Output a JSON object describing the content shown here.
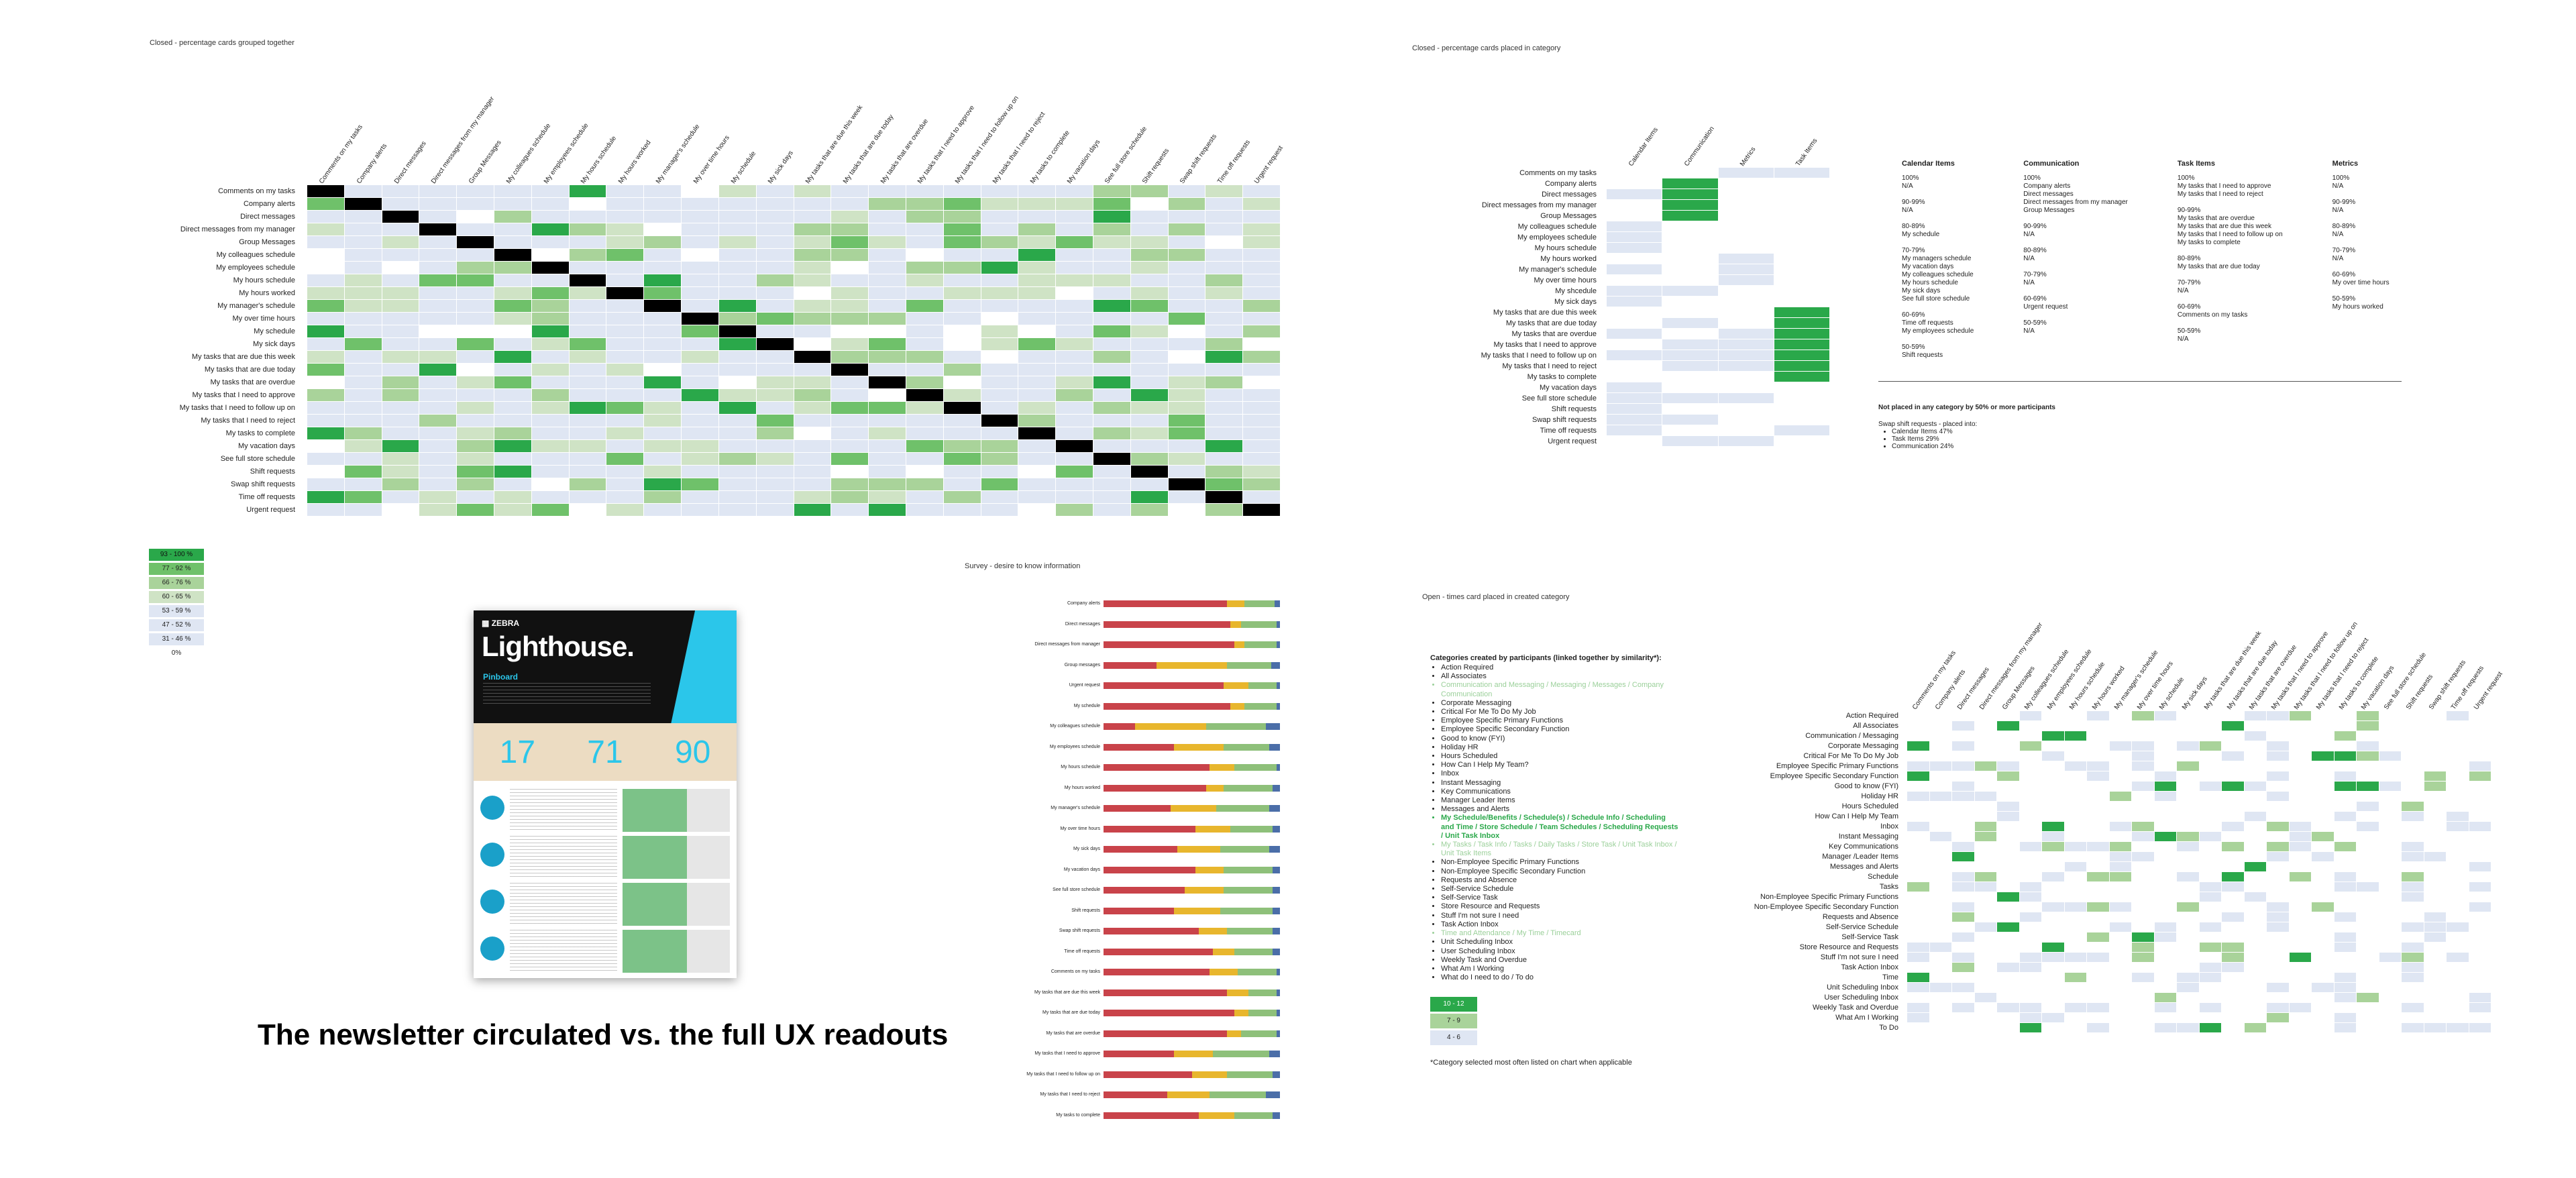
{
  "colors": {
    "heat_levels": [
      "#ffffff",
      "#dfe6f3",
      "#cfe3c5",
      "#a9d39a",
      "#6fc16a",
      "#2aa84a",
      "#000000"
    ],
    "survey_bars": [
      "#c9434a",
      "#e8b62d",
      "#8ec07a",
      "#4b6ea8"
    ],
    "newsletter_cyan": "#2bc6ea",
    "newsletter_dark": "#111111"
  },
  "closed_grouped": {
    "title": "Closed - percentage cards grouped together",
    "columns": [
      "Comments on my tasks",
      "Company alerts",
      "Direct messages",
      "Direct messages from my manager",
      "Group Messages",
      "My colleagues schedule",
      "My employees schedule",
      "My hours schedule",
      "My hours worked",
      "My manager's schedule",
      "My over time hours",
      "My schedule",
      "My sick days",
      "My tasks that are due this week",
      "My tasks that are due today",
      "My tasks that are overdue",
      "My tasks that I need to approve",
      "My tasks that I need to follow up on",
      "My tasks that I need to reject",
      "My tasks to complete",
      "My vacation days",
      "See full store schedule",
      "Shift requests",
      "Swap shift requests",
      "Time off requests",
      "Urgent request"
    ],
    "rows": [
      "Comments on my tasks",
      "Company alerts",
      "Direct messages",
      "Direct messages from my manager",
      "Group Messages",
      "My colleagues schedule",
      "My employees schedule",
      "My hours schedule",
      "My hours worked",
      "My manager's schedule",
      "My over time hours",
      "My schedule",
      "My sick days",
      "My tasks that are due this week",
      "My tasks that are due today",
      "My tasks that are overdue",
      "My tasks that I need to approve",
      "My tasks that I need to follow up on",
      "My tasks that I need to reject",
      "My tasks to complete",
      "My vacation days",
      "See full store schedule",
      "Shift requests",
      "Swap shift requests",
      "Time off requests",
      "Urgent request"
    ]
  },
  "legend": {
    "items": [
      "93 - 100 %",
      "77 - 92 %",
      "66 - 76 %",
      "60 - 65 %",
      "53 - 59 %",
      "47 - 52 %",
      "31 - 46 %",
      "0%"
    ]
  },
  "closed_in_category": {
    "title": "Closed - percentage cards placed in category",
    "columns": [
      "Calendar Items",
      "Communication",
      "Metrics",
      "Task Items"
    ],
    "rows": [
      "Comments on my tasks",
      "Company alerts",
      "Direct messages",
      "Direct messages from my manager",
      "Group Messages",
      "My colleagues schedule",
      "My employees schedule",
      "My hours schedule",
      "My hours worked",
      "My manager's schedule",
      "My over time hours",
      "My shcedule",
      "My sick days",
      "My tasks that are due this week",
      "My tasks that are due today",
      "My tasks that are overdue",
      "My tasks that I need to approve",
      "My tasks that I need to follow up on",
      "My tasks that I need to reject",
      "My tasks to complete",
      "My vacation days",
      "See full store schedule",
      "Shift requests",
      "Swap shift requests",
      "Time off requests",
      "Urgent request"
    ],
    "summary": [
      {
        "heading": "Calendar Items",
        "body": "100%\nN/A\n\n90-99%\nN/A\n\n80-89%\nMy schedule\n\n70-79%\nMy managers schedule\nMy vacation days\nMy colleagues schedule\nMy hours schedule\nMy sick days\nSee full store schedule\n\n60-69%\nTime off requests\nMy employees schedule\n\n50-59%\nShift requests"
      },
      {
        "heading": "Communication",
        "body": "100%\nCompany alerts\nDirect messages\nDirect messages from my manager\nGroup Messages\n\n90-99%\nN/A\n\n80-89%\nN/A\n\n70-79%\nN/A\n\n60-69%\nUrgent request\n\n50-59%\nN/A"
      },
      {
        "heading": "Task Items",
        "body": "100%\nMy tasks that I need to approve\nMy tasks that I need to reject\n\n90-99%\nMy tasks that are overdue\nMy tasks that are due this week\nMy tasks that I need to follow up on\nMy tasks to complete\n\n80-89%\nMy tasks that are due today\n\n70-79%\nN/A\n\n60-69%\nComments on my tasks\n\n50-59%\nN/A"
      },
      {
        "heading": "Metrics",
        "body": "100%\nN/A\n\n90-99%\nN/A\n\n80-89%\nN/A\n\n70-79%\nN/A\n\n60-69%\nMy over time hours\n\n50-59%\nMy hours worked"
      }
    ],
    "not_placed_title": "Not placed in any category by 50% or more participants",
    "not_placed_intro": "Swap shift requests - placed into:",
    "not_placed_items": [
      "Calendar Items 47%",
      "Task Items 29%",
      "Communication 24%"
    ]
  },
  "survey": {
    "title": "Survey - desire to know information",
    "rows": [
      {
        "label": "Company alerts",
        "values": [
          70,
          10,
          17,
          3
        ]
      },
      {
        "label": "Direct messages",
        "values": [
          72,
          6,
          20,
          2
        ]
      },
      {
        "label": "Direct messages from manager",
        "values": [
          74,
          6,
          18,
          2
        ]
      },
      {
        "label": "Group messages",
        "values": [
          30,
          40,
          25,
          5
        ]
      },
      {
        "label": "Urgent request",
        "values": [
          68,
          14,
          16,
          2
        ]
      },
      {
        "label": "My schedule",
        "values": [
          72,
          8,
          18,
          2
        ]
      },
      {
        "label": "My colleagues schedule",
        "values": [
          18,
          40,
          34,
          8
        ]
      },
      {
        "label": "My employees schedule",
        "values": [
          40,
          28,
          26,
          6
        ]
      },
      {
        "label": "My hours schedule",
        "values": [
          60,
          14,
          24,
          2
        ]
      },
      {
        "label": "My hours worked",
        "values": [
          58,
          10,
          28,
          4
        ]
      },
      {
        "label": "My manager's schedule",
        "values": [
          38,
          26,
          30,
          6
        ]
      },
      {
        "label": "My over time hours",
        "values": [
          52,
          20,
          24,
          4
        ]
      },
      {
        "label": "My sick days",
        "values": [
          42,
          24,
          28,
          6
        ]
      },
      {
        "label": "My vacation days",
        "values": [
          52,
          16,
          28,
          4
        ]
      },
      {
        "label": "See full store schedule",
        "values": [
          46,
          22,
          28,
          4
        ]
      },
      {
        "label": "Shift requests",
        "values": [
          40,
          26,
          30,
          4
        ]
      },
      {
        "label": "Swap shift requests",
        "values": [
          54,
          16,
          26,
          4
        ]
      },
      {
        "label": "Time off requests",
        "values": [
          62,
          12,
          22,
          4
        ]
      },
      {
        "label": "Comments on my tasks",
        "values": [
          60,
          16,
          22,
          2
        ]
      },
      {
        "label": "My tasks that are due this week",
        "values": [
          70,
          12,
          16,
          2
        ]
      },
      {
        "label": "My tasks that are due today",
        "values": [
          74,
          8,
          16,
          2
        ]
      },
      {
        "label": "My tasks that are overdue",
        "values": [
          70,
          8,
          20,
          2
        ]
      },
      {
        "label": "My tasks that I need to approve",
        "values": [
          40,
          22,
          32,
          6
        ]
      },
      {
        "label": "My tasks that I need to follow up on",
        "values": [
          50,
          20,
          26,
          4
        ]
      },
      {
        "label": "My tasks that I need to reject",
        "values": [
          36,
          24,
          32,
          8
        ]
      },
      {
        "label": "My tasks to complete",
        "values": [
          54,
          20,
          22,
          4
        ]
      }
    ]
  },
  "newsletter": {
    "brand": "ZEBRA",
    "title": "Lighthouse.",
    "section": "Pinboard",
    "stats": [
      "17",
      "71",
      "90"
    ],
    "caption": "The newsletter circulated vs. the full UX readouts"
  },
  "open_cards": {
    "title": "Open - times card placed in created category",
    "list_heading": "Categories created by participants (linked together by similarity*):",
    "list_items": [
      {
        "text": "Action Required",
        "tone": "normal"
      },
      {
        "text": "All Associates",
        "tone": "normal"
      },
      {
        "text": "Communication and Messaging / Messaging / Messages / Company Communication",
        "tone": "muted"
      },
      {
        "text": "Corporate Messaging",
        "tone": "normal"
      },
      {
        "text": "Critical For Me To Do My Job",
        "tone": "normal"
      },
      {
        "text": "Employee Specific Primary Functions",
        "tone": "normal"
      },
      {
        "text": "Employee Specific Secondary Function",
        "tone": "normal"
      },
      {
        "text": "Good to know (FYI)",
        "tone": "normal"
      },
      {
        "text": "Holiday HR",
        "tone": "normal"
      },
      {
        "text": "Hours Scheduled",
        "tone": "normal"
      },
      {
        "text": "How Can I Help My Team?",
        "tone": "normal"
      },
      {
        "text": "Inbox",
        "tone": "normal"
      },
      {
        "text": "Instant Messaging",
        "tone": "normal"
      },
      {
        "text": "Key Communications",
        "tone": "normal"
      },
      {
        "text": "Manager Leader Items",
        "tone": "normal"
      },
      {
        "text": "Messages and Alerts",
        "tone": "normal"
      },
      {
        "text": "My Schedule/Benefits / Schedule(s) / Schedule Info / Scheduling and Time / Store Schedule / Team Schedules / Scheduling Requests / Unit Task Inbox",
        "tone": "green"
      },
      {
        "text": "My Tasks / Task Info / Tasks / Daily Tasks / Store Task / Unit Task Inbox / Unit Task Items",
        "tone": "muted"
      },
      {
        "text": "Non-Employee Specific Primary Functions",
        "tone": "normal"
      },
      {
        "text": "Non-Employee Specific Secondary Function",
        "tone": "normal"
      },
      {
        "text": "Requests and Absence",
        "tone": "normal"
      },
      {
        "text": "Self-Service Schedule",
        "tone": "normal"
      },
      {
        "text": "Self-Service Task",
        "tone": "normal"
      },
      {
        "text": "Store Resource and Requests",
        "tone": "normal"
      },
      {
        "text": "Stuff I'm not sure I need",
        "tone": "normal"
      },
      {
        "text": "Task Action Inbox",
        "tone": "normal"
      },
      {
        "text": "Time and Attendance / My Time / Timecard",
        "tone": "muted"
      },
      {
        "text": "Unit Scheduling Inbox",
        "tone": "normal"
      },
      {
        "text": "User Scheduling Inbox",
        "tone": "normal"
      },
      {
        "text": "Weekly Task and Overdue",
        "tone": "normal"
      },
      {
        "text": "What Am I Working",
        "tone": "normal"
      },
      {
        "text": "What do I need to do / To do",
        "tone": "normal"
      }
    ],
    "legend": [
      "10 - 12",
      "7 - 9",
      "4 - 6"
    ],
    "footnote": "*Category selected most often listed on chart when applicable",
    "rows": [
      "Action Required",
      "All Associates",
      "Communication / Messaging",
      "Corporate Messaging",
      "Critical For Me To Do My Job",
      "Employee Specific Primary Functions",
      "Employee Specific Secondary Function",
      "Good to know (FYI)",
      "Holiday HR",
      "Hours Scheduled",
      "How Can I Help My Team",
      "Inbox",
      "Instant Messaging",
      "Key Communications",
      "Manager /Leader Items",
      "Messages and Alerts",
      "Schedule",
      "Tasks",
      "Non-Employee Specific Primary Functions",
      "Non-Employee Specific Secondary Function",
      "Requests and Absence",
      "Self-Service Schedule",
      "Self-Service Task",
      "Store Resource and Requests",
      "Stuff I'm not sure I need",
      "Task Action Inbox",
      "Time",
      "Unit Scheduling Inbox",
      "User Scheduling Inbox",
      "Weekly Task and Overdue",
      "What Am I Working",
      "To Do"
    ],
    "columns": [
      "Comments on my tasks",
      "Company alerts",
      "Direct messages",
      "Direct messages from my manager",
      "Group Messages",
      "My colleagues schedule",
      "My employees schedule",
      "My hours schedule",
      "My hours worked",
      "My manager's schedule",
      "My over time hours",
      "My schedule",
      "My sick days",
      "My tasks that are due this week",
      "My tasks that are due today",
      "My tasks that are overdue",
      "My tasks that I need to approve",
      "My tasks that I need to follow up on",
      "My tasks that I need to reject",
      "My tasks to complete",
      "My vacation days",
      "See full store schedule",
      "Shift requests",
      "Swap shift requests",
      "Time off requests",
      "Urgent request"
    ]
  }
}
